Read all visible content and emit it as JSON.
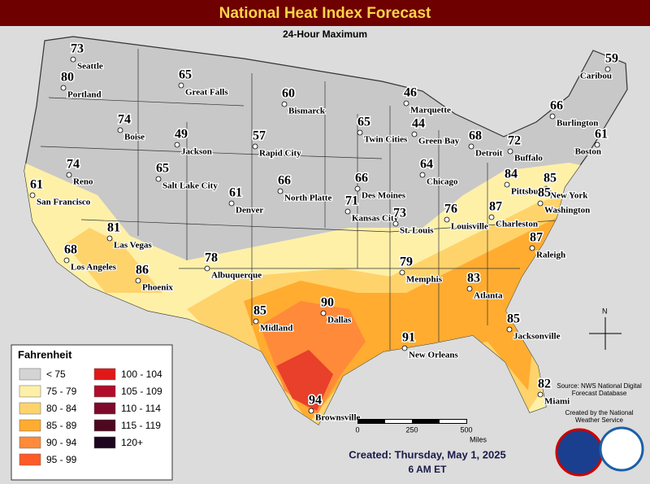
{
  "header": {
    "title": "National Heat Index Forecast",
    "subtitle": "24-Hour Maximum"
  },
  "cities": [
    {
      "name": "Seattle",
      "value": 73
    },
    {
      "name": "Portland",
      "value": 80
    },
    {
      "name": "Great Falls",
      "value": 65
    },
    {
      "name": "Bismarck",
      "value": 60
    },
    {
      "name": "Marquette",
      "value": 46
    },
    {
      "name": "Caribou",
      "value": 59
    },
    {
      "name": "Burlington",
      "value": 66
    },
    {
      "name": "Boise",
      "value": 74
    },
    {
      "name": "Jackson",
      "value": 49
    },
    {
      "name": "Rapid City",
      "value": 57
    },
    {
      "name": "Twin Cities",
      "value": 65
    },
    {
      "name": "Green Bay",
      "value": 44
    },
    {
      "name": "Boston",
      "value": 61
    },
    {
      "name": "Buffalo",
      "value": 72
    },
    {
      "name": "Detroit",
      "value": 68
    },
    {
      "name": "Reno",
      "value": 74
    },
    {
      "name": "Salt Lake City",
      "value": 65
    },
    {
      "name": "Denver",
      "value": 61
    },
    {
      "name": "North Platte",
      "value": 66
    },
    {
      "name": "Des Moines",
      "value": 66
    },
    {
      "name": "Chicago",
      "value": 64
    },
    {
      "name": "Pittsburgh",
      "value": 84
    },
    {
      "name": "New York",
      "value": 85
    },
    {
      "name": "San Francisco",
      "value": 61
    },
    {
      "name": "Kansas City",
      "value": 71
    },
    {
      "name": "St. Louis",
      "value": 73
    },
    {
      "name": "Louisville",
      "value": 76
    },
    {
      "name": "Charleston",
      "value": 87
    },
    {
      "name": "Washington",
      "value": 85
    },
    {
      "name": "Las Vegas",
      "value": 81
    },
    {
      "name": "Los Angeles",
      "value": 68
    },
    {
      "name": "Phoenix",
      "value": 86
    },
    {
      "name": "Albuquerque",
      "value": 78
    },
    {
      "name": "Memphis",
      "value": 79
    },
    {
      "name": "Raleigh",
      "value": 87
    },
    {
      "name": "Atlanta",
      "value": 83
    },
    {
      "name": "Dallas",
      "value": 90
    },
    {
      "name": "Midland",
      "value": 85
    },
    {
      "name": "Jacksonville",
      "value": 85
    },
    {
      "name": "New Orleans",
      "value": 91
    },
    {
      "name": "Miami",
      "value": 82
    },
    {
      "name": "Brownsville",
      "value": 94
    }
  ],
  "legend": {
    "title": "Fahrenheit",
    "items": [
      {
        "label": "< 75",
        "color": "#d4d4d4"
      },
      {
        "label": "75 - 79",
        "color": "#fff0a8"
      },
      {
        "label": "80 - 84",
        "color": "#ffd36b"
      },
      {
        "label": "85 - 89",
        "color": "#ffac30"
      },
      {
        "label": "90 - 94",
        "color": "#ff8a3a"
      },
      {
        "label": "95 - 99",
        "color": "#ff5a28"
      },
      {
        "label": "100 - 104",
        "color": "#e01818"
      },
      {
        "label": "105 - 109",
        "color": "#b00d2c"
      },
      {
        "label": "110 - 114",
        "color": "#7d0a2a"
      },
      {
        "label": "115 - 119",
        "color": "#4d0820"
      },
      {
        "label": "120+",
        "color": "#1e0520"
      }
    ]
  },
  "scale": {
    "ticks": [
      "0",
      "250",
      "500"
    ],
    "unit": "Miles"
  },
  "compass": "N",
  "source": "Source: NWS National Digital Forecast Database",
  "credit": "Created by the National Weather Service",
  "footer": {
    "created": "Created: Thursday, May 1, 2025",
    "time": "6 AM ET"
  }
}
